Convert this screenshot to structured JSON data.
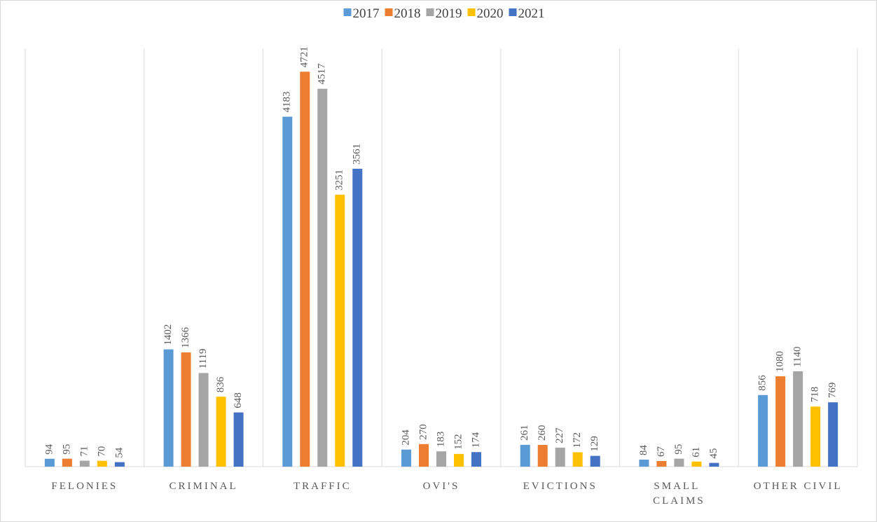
{
  "chart_data": {
    "type": "bar",
    "categories": [
      "FELONIES",
      "CRIMINAL",
      "TRAFFIC",
      "OVI'S",
      "EVICTIONS",
      "SMALL CLAIMS",
      "OTHER CIVIL"
    ],
    "series": [
      {
        "name": "2017",
        "color": "#5b9bd5",
        "values": [
          94,
          1402,
          4183,
          204,
          261,
          84,
          856
        ]
      },
      {
        "name": "2018",
        "color": "#ed7d31",
        "values": [
          95,
          1366,
          4721,
          270,
          260,
          67,
          1080
        ]
      },
      {
        "name": "2019",
        "color": "#a5a5a5",
        "values": [
          71,
          1119,
          4517,
          183,
          227,
          95,
          1140
        ]
      },
      {
        "name": "2020",
        "color": "#ffc000",
        "values": [
          70,
          836,
          3251,
          152,
          172,
          61,
          718
        ]
      },
      {
        "name": "2021",
        "color": "#4472c4",
        "values": [
          54,
          648,
          3561,
          174,
          129,
          45,
          769
        ]
      }
    ],
    "ylim": [
      0,
      5000
    ],
    "legend": "top"
  }
}
